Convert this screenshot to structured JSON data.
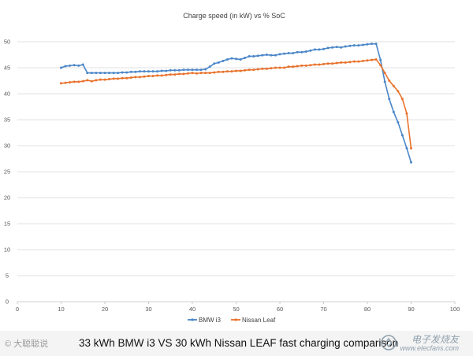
{
  "chart_data": {
    "type": "line",
    "title": "Charge speed (in kW) vs % SoC",
    "xlim": [
      0,
      100
    ],
    "ylim": [
      0,
      50
    ],
    "x_ticks": [
      0,
      10,
      20,
      30,
      40,
      50,
      60,
      70,
      80,
      90,
      100
    ],
    "y_ticks": [
      0,
      5,
      10,
      15,
      20,
      25,
      30,
      35,
      40,
      45,
      50
    ],
    "grid": "horizontal",
    "legend_position": "bottom",
    "series": [
      {
        "name": "BMW i3",
        "color": "#4A86C8",
        "points": [
          [
            10,
            45
          ],
          [
            11,
            45.3
          ],
          [
            12,
            45.4
          ],
          [
            13,
            45.5
          ],
          [
            14,
            45.4
          ],
          [
            15,
            45.6
          ],
          [
            16,
            44
          ],
          [
            17,
            44
          ],
          [
            18,
            44
          ],
          [
            19,
            44
          ],
          [
            20,
            44
          ],
          [
            21,
            44
          ],
          [
            22,
            44
          ],
          [
            23,
            44
          ],
          [
            24,
            44.1
          ],
          [
            25,
            44.1
          ],
          [
            26,
            44.2
          ],
          [
            27,
            44.2
          ],
          [
            28,
            44.3
          ],
          [
            29,
            44.3
          ],
          [
            30,
            44.3
          ],
          [
            31,
            44.3
          ],
          [
            32,
            44.3
          ],
          [
            33,
            44.4
          ],
          [
            34,
            44.4
          ],
          [
            35,
            44.5
          ],
          [
            36,
            44.5
          ],
          [
            37,
            44.5
          ],
          [
            38,
            44.6
          ],
          [
            39,
            44.6
          ],
          [
            40,
            44.6
          ],
          [
            41,
            44.6
          ],
          [
            42,
            44.6
          ],
          [
            43,
            44.7
          ],
          [
            44,
            45.2
          ],
          [
            45,
            45.8
          ],
          [
            46,
            46
          ],
          [
            47,
            46.3
          ],
          [
            48,
            46.6
          ],
          [
            49,
            46.8
          ],
          [
            50,
            46.7
          ],
          [
            51,
            46.6
          ],
          [
            52,
            46.9
          ],
          [
            53,
            47.2
          ],
          [
            54,
            47.2
          ],
          [
            55,
            47.3
          ],
          [
            56,
            47.4
          ],
          [
            57,
            47.5
          ],
          [
            58,
            47.4
          ],
          [
            59,
            47.4
          ],
          [
            60,
            47.6
          ],
          [
            61,
            47.7
          ],
          [
            62,
            47.8
          ],
          [
            63,
            47.8
          ],
          [
            64,
            48
          ],
          [
            65,
            48
          ],
          [
            66,
            48.1
          ],
          [
            67,
            48.3
          ],
          [
            68,
            48.5
          ],
          [
            69,
            48.5
          ],
          [
            70,
            48.6
          ],
          [
            71,
            48.8
          ],
          [
            72,
            48.9
          ],
          [
            73,
            49
          ],
          [
            74,
            48.9
          ],
          [
            75,
            49.1
          ],
          [
            76,
            49.2
          ],
          [
            77,
            49.3
          ],
          [
            78,
            49.3
          ],
          [
            79,
            49.4
          ],
          [
            80,
            49.5
          ],
          [
            81,
            49.6
          ],
          [
            82,
            49.6
          ],
          [
            83,
            46.5
          ],
          [
            84,
            42.3
          ],
          [
            85,
            39
          ],
          [
            86,
            36.5
          ],
          [
            87,
            34.5
          ],
          [
            88,
            32
          ],
          [
            89,
            29.5
          ],
          [
            90,
            26.8
          ]
        ]
      },
      {
        "name": "Nissan Leaf",
        "color": "#E8722C",
        "points": [
          [
            10,
            42
          ],
          [
            11,
            42.1
          ],
          [
            12,
            42.2
          ],
          [
            13,
            42.3
          ],
          [
            14,
            42.3
          ],
          [
            15,
            42.4
          ],
          [
            16,
            42.6
          ],
          [
            17,
            42.4
          ],
          [
            18,
            42.6
          ],
          [
            19,
            42.7
          ],
          [
            20,
            42.7
          ],
          [
            21,
            42.8
          ],
          [
            22,
            42.9
          ],
          [
            23,
            42.9
          ],
          [
            24,
            43
          ],
          [
            25,
            43
          ],
          [
            26,
            43.1
          ],
          [
            27,
            43.2
          ],
          [
            28,
            43.2
          ],
          [
            29,
            43.3
          ],
          [
            30,
            43.4
          ],
          [
            31,
            43.4
          ],
          [
            32,
            43.5
          ],
          [
            33,
            43.5
          ],
          [
            34,
            43.6
          ],
          [
            35,
            43.7
          ],
          [
            36,
            43.7
          ],
          [
            37,
            43.8
          ],
          [
            38,
            43.8
          ],
          [
            39,
            43.9
          ],
          [
            40,
            44
          ],
          [
            41,
            43.9
          ],
          [
            42,
            44
          ],
          [
            43,
            44
          ],
          [
            44,
            44
          ],
          [
            45,
            44.1
          ],
          [
            46,
            44.2
          ],
          [
            47,
            44.2
          ],
          [
            48,
            44.3
          ],
          [
            49,
            44.3
          ],
          [
            50,
            44.4
          ],
          [
            51,
            44.4
          ],
          [
            52,
            44.5
          ],
          [
            53,
            44.6
          ],
          [
            54,
            44.6
          ],
          [
            55,
            44.7
          ],
          [
            56,
            44.8
          ],
          [
            57,
            44.8
          ],
          [
            58,
            44.9
          ],
          [
            59,
            45
          ],
          [
            60,
            45
          ],
          [
            61,
            45
          ],
          [
            62,
            45.2
          ],
          [
            63,
            45.2
          ],
          [
            64,
            45.3
          ],
          [
            65,
            45.4
          ],
          [
            66,
            45.4
          ],
          [
            67,
            45.5
          ],
          [
            68,
            45.6
          ],
          [
            69,
            45.6
          ],
          [
            70,
            45.7
          ],
          [
            71,
            45.8
          ],
          [
            72,
            45.8
          ],
          [
            73,
            45.9
          ],
          [
            74,
            46
          ],
          [
            75,
            46
          ],
          [
            76,
            46.1
          ],
          [
            77,
            46.2
          ],
          [
            78,
            46.2
          ],
          [
            79,
            46.3
          ],
          [
            80,
            46.4
          ],
          [
            81,
            46.5
          ],
          [
            82,
            46.6
          ],
          [
            83,
            45.5
          ],
          [
            84,
            44
          ],
          [
            85,
            42.5
          ],
          [
            86,
            41.5
          ],
          [
            87,
            40.5
          ],
          [
            88,
            39
          ],
          [
            89,
            36.2
          ],
          [
            90,
            29.5
          ]
        ]
      }
    ]
  },
  "caption": "33 kWh BMW i3 VS 30 kWh Nissan LEAF fast charging comparison",
  "watermark_left": "© 大聪聪说",
  "watermark_right_cn": "电子发烧友",
  "watermark_right_url": "www.elecfans.com"
}
